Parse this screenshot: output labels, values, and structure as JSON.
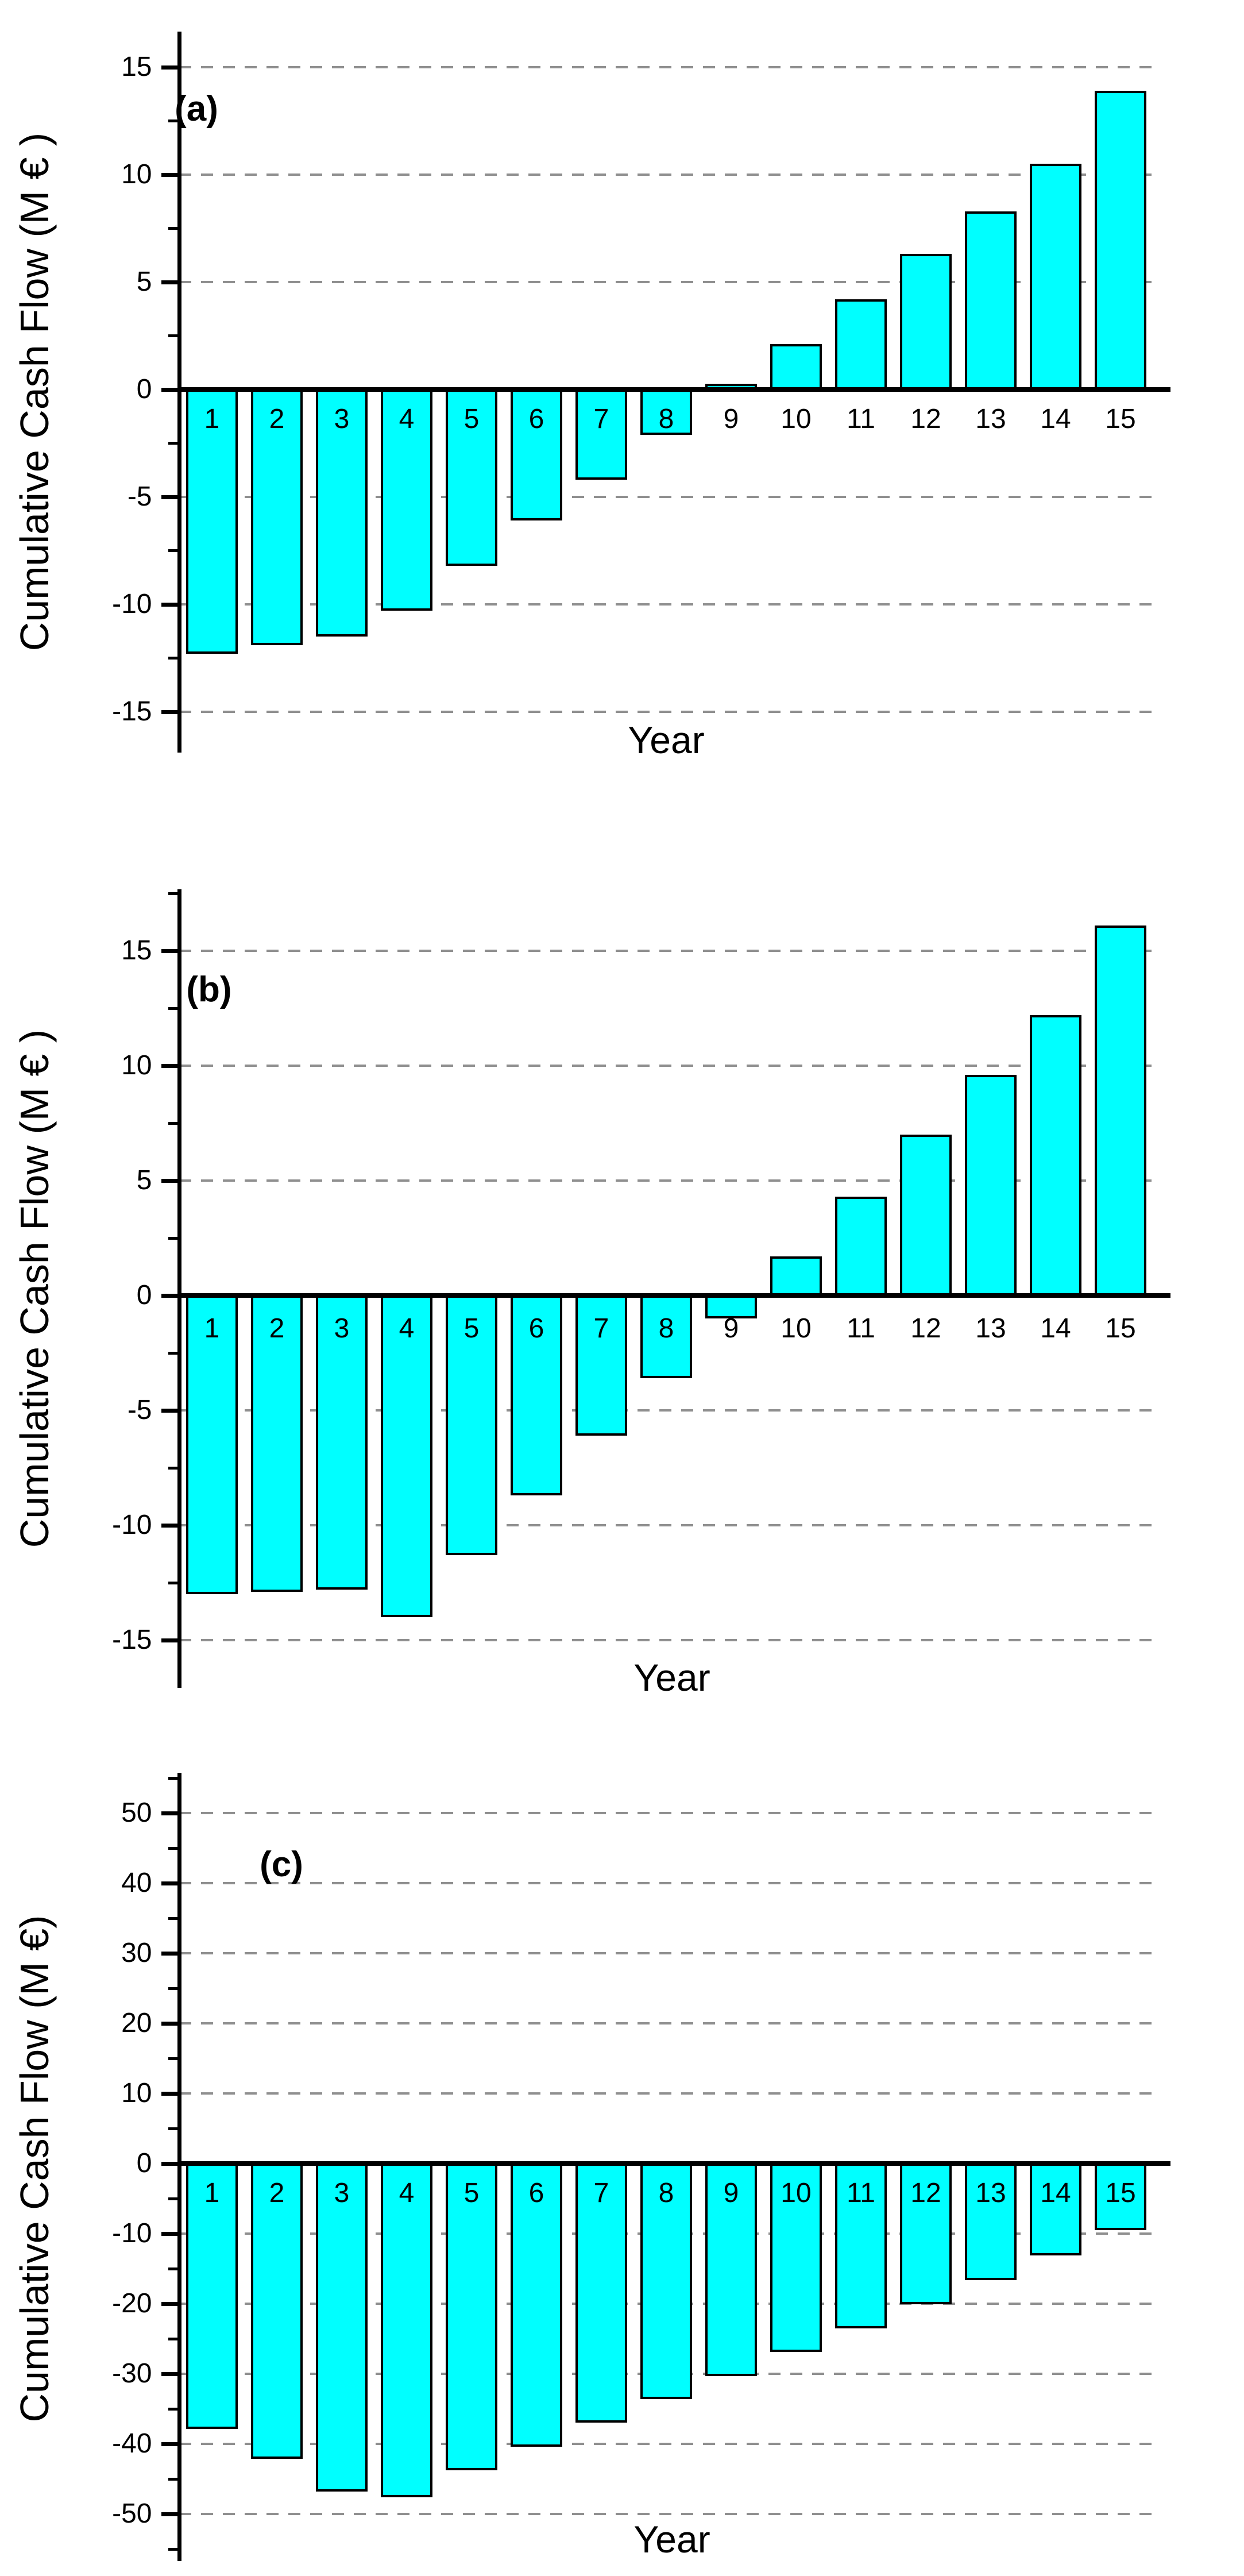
{
  "figure": {
    "description": "Three stacked bar chart panels of cumulative cash flow versus year",
    "background_color": "#ffffff",
    "panel_count": 3
  },
  "style": {
    "bar_fill": "#00ffff",
    "bar_border": "#000000",
    "axis_color": "#000000",
    "gridline_color": "#8f8f8f",
    "text_color": "#000000"
  },
  "chart_data": [
    {
      "id": "a",
      "type": "bar",
      "panel_label": "(a)",
      "xlabel": "Year",
      "ylabel": "Cumulative Cash Flow (M € )",
      "categories": [
        "1",
        "2",
        "3",
        "4",
        "5",
        "6",
        "7",
        "8",
        "9",
        "10",
        "11",
        "12",
        "13",
        "14",
        "15"
      ],
      "values": [
        -12.3,
        -11.9,
        -11.5,
        -10.3,
        -8.2,
        -6.1,
        -4.2,
        -2.1,
        0.1,
        2.1,
        4.2,
        6.3,
        8.3,
        10.5,
        13.9
      ],
      "ylim": [
        -17,
        17
      ],
      "yticks": [
        -15,
        -10,
        -5,
        0,
        5,
        10,
        15
      ],
      "ytick_labels": [
        "-15",
        "-10",
        "-5",
        "0",
        "5",
        "10",
        "15"
      ],
      "minor_yticks": [
        -12.5,
        -7.5,
        -2.5,
        2.5,
        7.5,
        12.5
      ],
      "grid": {
        "horizontal_dashed": true,
        "at_yticks_except_zero": true
      },
      "legend": "none",
      "bar_labels_position": "year number centered in each bar column just below the zero line"
    },
    {
      "id": "b",
      "type": "bar",
      "panel_label": "(b)",
      "xlabel": "Year",
      "ylabel": "Cumulative Cash Flow (M € )",
      "categories": [
        "1",
        "2",
        "3",
        "4",
        "5",
        "6",
        "7",
        "8",
        "9",
        "10",
        "11",
        "12",
        "13",
        "14",
        "15"
      ],
      "values": [
        -13.0,
        -12.9,
        -12.8,
        -14.0,
        -11.3,
        -8.7,
        -6.1,
        -3.6,
        -1.0,
        1.7,
        4.3,
        7.0,
        9.6,
        12.2,
        16.1
      ],
      "ylim": [
        -17.5,
        18
      ],
      "yticks": [
        -15,
        -10,
        -5,
        0,
        5,
        10,
        15
      ],
      "ytick_labels": [
        "-15",
        "-10",
        "-5",
        "0",
        "5",
        "10",
        "15"
      ],
      "minor_yticks": [
        -12.5,
        -7.5,
        -2.5,
        2.5,
        7.5,
        12.5,
        17.5
      ],
      "grid": {
        "horizontal_dashed": true,
        "at_yticks_except_zero": true
      },
      "legend": "none",
      "bar_labels_position": "year number centered in each bar column just below the zero line"
    },
    {
      "id": "c",
      "type": "bar",
      "panel_label": "(c)",
      "xlabel": "Year",
      "ylabel": "Cumulative Cash Flow (M €)",
      "categories": [
        "1",
        "2",
        "3",
        "4",
        "5",
        "6",
        "7",
        "8",
        "9",
        "10",
        "11",
        "12",
        "13",
        "14",
        "15"
      ],
      "values": [
        -37.9,
        -42.1,
        -46.8,
        -47.6,
        -43.8,
        -40.4,
        -37.0,
        -33.6,
        -30.3,
        -26.9,
        -23.5,
        -20.1,
        -16.6,
        -13.1,
        -9.5
      ],
      "ylim": [
        -57,
        56
      ],
      "yticks": [
        -50,
        -40,
        -30,
        -20,
        -10,
        0,
        10,
        20,
        30,
        40,
        50
      ],
      "ytick_labels": [
        "-50",
        "-40",
        "-30",
        "-20",
        "-10",
        "0",
        "10",
        "20",
        "30",
        "40",
        "50"
      ],
      "minor_yticks": [
        -55,
        -45,
        -35,
        -25,
        -15,
        -5,
        5,
        15,
        25,
        35,
        45,
        55
      ],
      "grid": {
        "horizontal_dashed": true,
        "at_yticks_except_zero": true
      },
      "legend": "none",
      "bar_labels_position": "year number inside top of each bar below the zero line"
    }
  ]
}
